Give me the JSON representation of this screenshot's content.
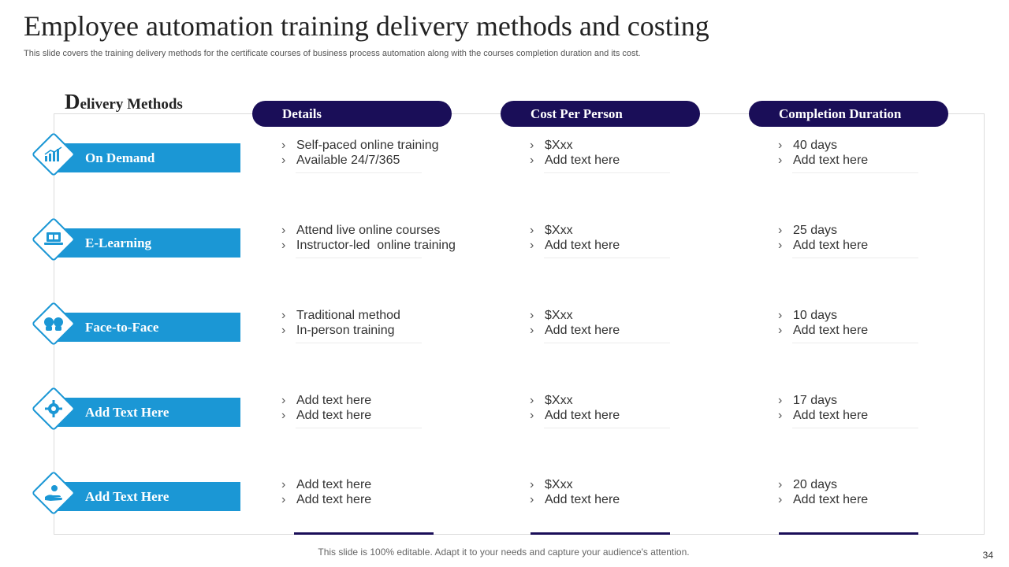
{
  "slide": {
    "title": "Employee automation training delivery methods and costing",
    "subtitle": "This slide covers the training delivery methods for the certificate courses of business process automation along with the courses completion duration and its cost.",
    "section_heading_first": "D",
    "section_heading_rest": "elivery Methods",
    "footer": "This slide is 100% editable. Adapt it to your needs and capture your audience's attention.",
    "page_number": "34"
  },
  "columns": [
    "Details",
    "Cost Per Person",
    "Completion Duration"
  ],
  "bullet": "›",
  "rows": [
    {
      "method": "On Demand",
      "icon": "bar-chart-icon",
      "details": [
        "Self-paced online training",
        "Available 24/7/365"
      ],
      "cost": [
        "$Xxx",
        "Add text here"
      ],
      "duration": [
        "40 days",
        "Add text here"
      ]
    },
    {
      "method": "E-Learning",
      "icon": "laptop-icon",
      "details": [
        "Attend live online courses",
        "Instructor-led  online training"
      ],
      "cost": [
        "$Xxx",
        "Add text here"
      ],
      "duration": [
        "25 days",
        "Add text here"
      ]
    },
    {
      "method": "Face-to-Face",
      "icon": "people-talking-icon",
      "details": [
        "Traditional method",
        "In-person training"
      ],
      "cost": [
        "$Xxx",
        "Add text here"
      ],
      "duration": [
        "10 days",
        "Add text here"
      ]
    },
    {
      "method": "Add  Text Here",
      "icon": "gear-icon",
      "details": [
        "Add text here",
        "Add text here"
      ],
      "cost": [
        "$Xxx",
        "Add text here"
      ],
      "duration": [
        "17 days",
        "Add text here"
      ]
    },
    {
      "method": "Add  Text Here",
      "icon": "hand-person-icon",
      "details": [
        "Add text here",
        "Add text here"
      ],
      "cost": [
        "$Xxx",
        "Add text here"
      ],
      "duration": [
        "20 days",
        "Add text here"
      ]
    }
  ],
  "colors": {
    "header_navy": "#1a0e58",
    "method_blue": "#1b97d5"
  }
}
